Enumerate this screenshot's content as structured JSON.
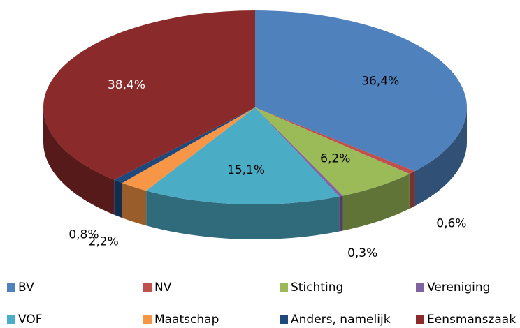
{
  "chart_data": {
    "type": "pie",
    "categories": [
      "BV",
      "NV",
      "Stichting",
      "Vereniging",
      "VOF",
      "Maatschap",
      "Anders, namelijk",
      "Eensmanszaak"
    ],
    "values": [
      36.4,
      0.6,
      6.2,
      0.3,
      15.1,
      2.2,
      0.8,
      38.4
    ],
    "value_labels": [
      "36,4%",
      "0,6%",
      "6,2%",
      "0,3%",
      "15,1%",
      "2,2%",
      "0,8%",
      "38,4%"
    ],
    "colors": [
      "#4f81bd",
      "#c0504d",
      "#9bbb59",
      "#8064a2",
      "#4bacc6",
      "#f79646",
      "#1f497d",
      "#8b2a2a"
    ],
    "legend": "bottom"
  }
}
